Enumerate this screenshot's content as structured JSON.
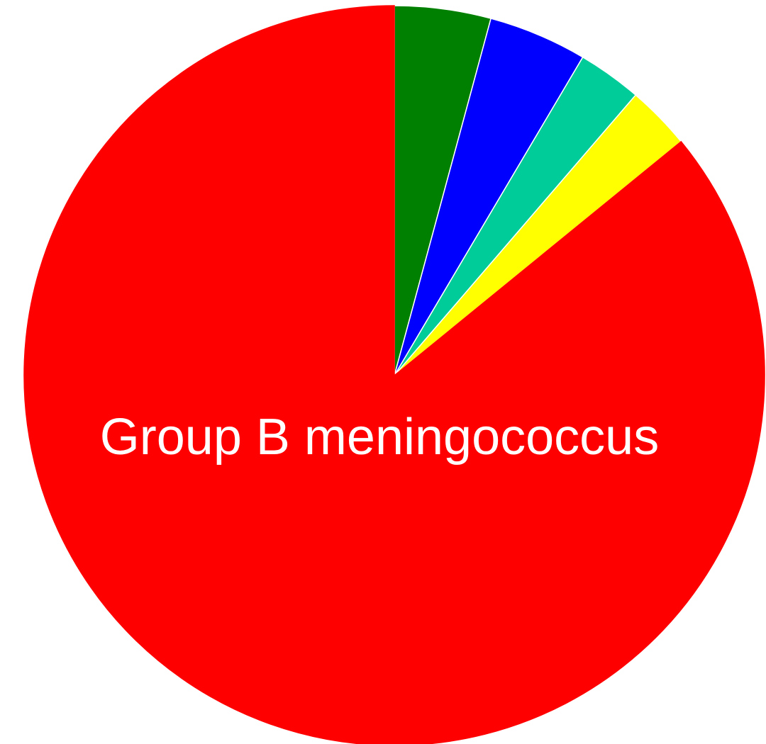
{
  "chart_data": {
    "type": "pie",
    "categories": [
      null,
      null,
      null,
      null,
      null,
      "Group B meningococcus"
    ],
    "values": [
      4.2,
      4.3,
      2.8,
      2.8,
      24.8,
      61.1
    ],
    "colors": [
      "#008000",
      "#0000ff",
      "#00cc99",
      "#ffff00",
      "#ff0000",
      "#ff0000"
    ]
  }
}
